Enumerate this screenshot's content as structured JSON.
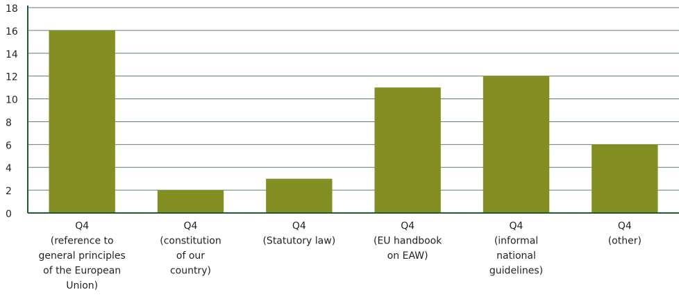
{
  "chart_data": {
    "type": "bar",
    "categories": [
      [
        "Q4",
        "(reference to",
        "general principles",
        "of the European",
        "Union)"
      ],
      [
        "Q4",
        "(constitution",
        "of our",
        "country)"
      ],
      [
        "Q4",
        "(Statutory law)"
      ],
      [
        "Q4",
        "(EU handbook",
        "on EAW)"
      ],
      [
        "Q4",
        "(informal",
        "national",
        "guidelines)"
      ],
      [
        "Q4",
        "(other)"
      ]
    ],
    "values": [
      16,
      2,
      3,
      11,
      12,
      6
    ],
    "color": "#838f22",
    "ylim": [
      0,
      18
    ],
    "yticks": [
      0,
      2,
      4,
      6,
      8,
      10,
      12,
      14,
      16,
      18
    ],
    "grid": true
  }
}
